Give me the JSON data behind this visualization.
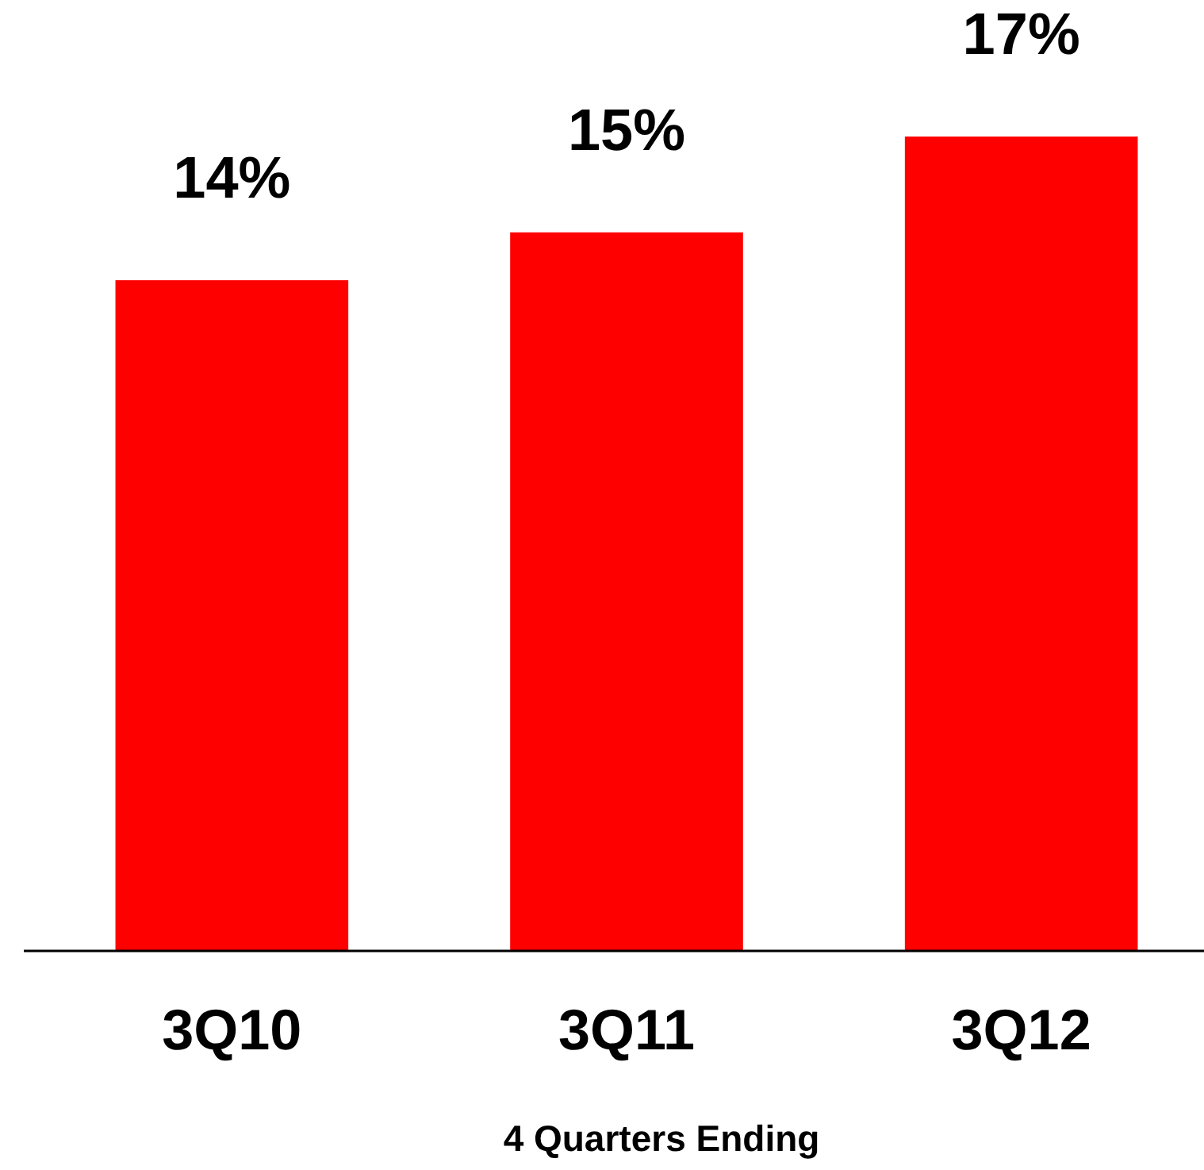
{
  "chart_data": {
    "type": "bar",
    "xlabel": "4 Quarters Ending",
    "categories": [
      "3Q10",
      "3Q11",
      "3Q12"
    ],
    "values": [
      14,
      15,
      17
    ],
    "value_labels": [
      "14%",
      "15%",
      "17%"
    ],
    "color": "#ff0000",
    "tick_labels": "x"
  }
}
